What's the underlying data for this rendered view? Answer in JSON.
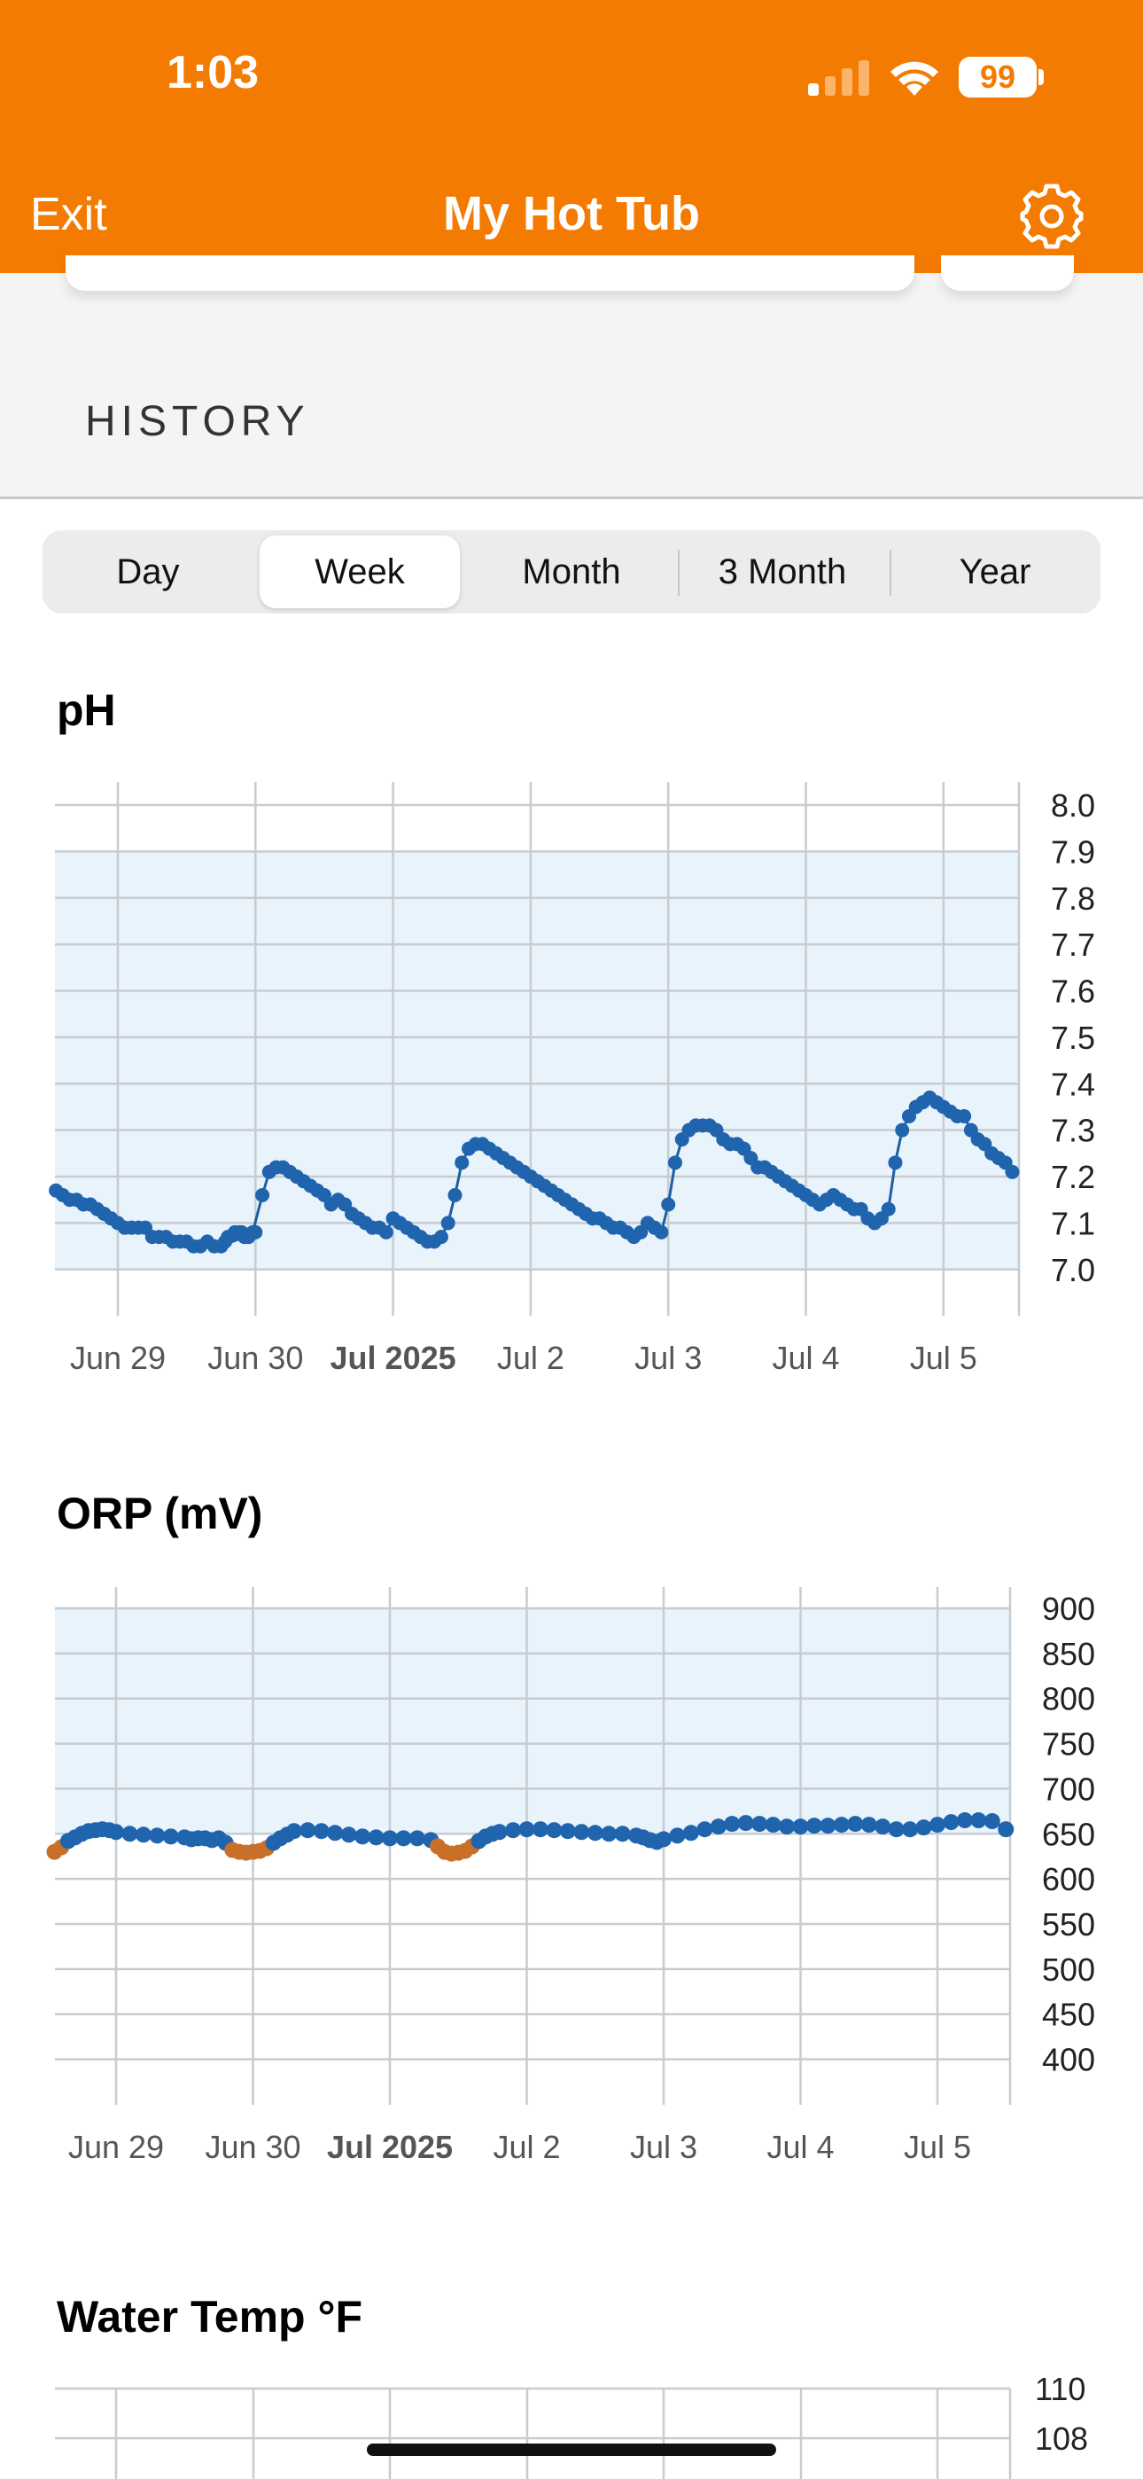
{
  "status_bar": {
    "time": "1:03",
    "battery": "99",
    "icons": [
      "cellular-signal-icon",
      "wifi-icon",
      "battery-icon"
    ]
  },
  "header": {
    "exit_label": "Exit",
    "title": "My Hot Tub",
    "settings_icon": "gear-icon",
    "background": "#f47b02"
  },
  "history": {
    "label": "HISTORY"
  },
  "range_tabs": {
    "items": [
      "Day",
      "Week",
      "Month",
      "3 Month",
      "Year"
    ],
    "selected": "Week"
  },
  "colors": {
    "line": "#1e5fa3",
    "dot": "#1f64ad",
    "low": "#c8702a",
    "band": "#e8f3fc",
    "grid": "#c7ccd1"
  },
  "chart_data": [
    {
      "type": "line",
      "title": "pH",
      "x_ticks": [
        "Jun 29",
        "Jun 30",
        "Jul 2025",
        "Jul 2",
        "Jul 3",
        "Jul 4",
        "Jul 5"
      ],
      "x_tick_bold": "Jul 2025",
      "y_ticks": [
        "8.0",
        "7.9",
        "7.8",
        "7.7",
        "7.6",
        "7.5",
        "7.4",
        "7.3",
        "7.2",
        "7.1",
        "7.0"
      ],
      "ylim": [
        6.95,
        8.0
      ],
      "xlim": [
        -0.45,
        6.55
      ],
      "target_range": [
        7.0,
        7.9
      ],
      "grid": true,
      "points": [
        [
          -0.45,
          7.17
        ],
        [
          -0.4,
          7.16
        ],
        [
          -0.35,
          7.15
        ],
        [
          -0.3,
          7.15
        ],
        [
          -0.25,
          7.14
        ],
        [
          -0.2,
          7.14
        ],
        [
          -0.15,
          7.13
        ],
        [
          -0.1,
          7.12
        ],
        [
          -0.05,
          7.11
        ],
        [
          0.0,
          7.1
        ],
        [
          0.05,
          7.09
        ],
        [
          0.1,
          7.09
        ],
        [
          0.15,
          7.09
        ],
        [
          0.2,
          7.09
        ],
        [
          0.25,
          7.07
        ],
        [
          0.3,
          7.07
        ],
        [
          0.35,
          7.07
        ],
        [
          0.4,
          7.06
        ],
        [
          0.45,
          7.06
        ],
        [
          0.5,
          7.06
        ],
        [
          0.55,
          7.05
        ],
        [
          0.6,
          7.05
        ],
        [
          0.65,
          7.06
        ],
        [
          0.7,
          7.05
        ],
        [
          0.75,
          7.05
        ],
        [
          0.8,
          7.07
        ],
        [
          0.85,
          7.08
        ],
        [
          0.9,
          7.08
        ],
        [
          0.95,
          7.07
        ],
        [
          1.0,
          7.08
        ],
        [
          0.75,
          7.05
        ],
        [
          0.78,
          7.06
        ],
        [
          0.88,
          7.08
        ],
        [
          0.92,
          7.07
        ],
        [
          0.98,
          7.08
        ],
        [
          1.05,
          7.16
        ],
        [
          1.1,
          7.21
        ],
        [
          1.15,
          7.22
        ],
        [
          1.2,
          7.22
        ],
        [
          1.25,
          7.21
        ],
        [
          1.3,
          7.2
        ],
        [
          1.35,
          7.19
        ],
        [
          1.4,
          7.18
        ],
        [
          1.45,
          7.17
        ],
        [
          1.5,
          7.16
        ],
        [
          1.55,
          7.14
        ],
        [
          1.6,
          7.15
        ],
        [
          1.65,
          7.14
        ],
        [
          1.7,
          7.12
        ],
        [
          1.75,
          7.11
        ],
        [
          1.8,
          7.1
        ],
        [
          1.85,
          7.09
        ],
        [
          1.9,
          7.09
        ],
        [
          1.95,
          7.08
        ],
        [
          2.0,
          7.11
        ],
        [
          2.05,
          7.1
        ],
        [
          2.1,
          7.09
        ],
        [
          2.15,
          7.08
        ],
        [
          2.2,
          7.07
        ],
        [
          2.25,
          7.06
        ],
        [
          2.3,
          7.06
        ],
        [
          2.35,
          7.07
        ],
        [
          2.4,
          7.1
        ],
        [
          2.45,
          7.16
        ],
        [
          2.5,
          7.23
        ],
        [
          2.55,
          7.26
        ],
        [
          2.6,
          7.27
        ],
        [
          2.65,
          7.27
        ],
        [
          2.7,
          7.26
        ],
        [
          2.75,
          7.25
        ],
        [
          2.8,
          7.24
        ],
        [
          2.85,
          7.23
        ],
        [
          2.9,
          7.22
        ],
        [
          2.95,
          7.21
        ],
        [
          3.0,
          7.2
        ],
        [
          3.05,
          7.19
        ],
        [
          3.1,
          7.18
        ],
        [
          3.15,
          7.17
        ],
        [
          3.2,
          7.16
        ],
        [
          3.25,
          7.15
        ],
        [
          3.3,
          7.14
        ],
        [
          3.35,
          7.13
        ],
        [
          3.4,
          7.12
        ],
        [
          3.45,
          7.11
        ],
        [
          3.5,
          7.11
        ],
        [
          3.55,
          7.1
        ],
        [
          3.6,
          7.09
        ],
        [
          3.65,
          7.09
        ],
        [
          3.7,
          7.08
        ],
        [
          3.75,
          7.07
        ],
        [
          3.8,
          7.08
        ],
        [
          3.85,
          7.1
        ],
        [
          3.9,
          7.09
        ],
        [
          3.95,
          7.08
        ],
        [
          4.0,
          7.14
        ],
        [
          4.05,
          7.23
        ],
        [
          4.1,
          7.28
        ],
        [
          4.15,
          7.3
        ],
        [
          4.2,
          7.31
        ],
        [
          4.25,
          7.31
        ],
        [
          4.3,
          7.31
        ],
        [
          4.35,
          7.3
        ],
        [
          4.4,
          7.28
        ],
        [
          4.45,
          7.27
        ],
        [
          4.5,
          7.27
        ],
        [
          4.55,
          7.26
        ],
        [
          4.6,
          7.24
        ],
        [
          4.65,
          7.22
        ],
        [
          4.7,
          7.22
        ],
        [
          4.75,
          7.21
        ],
        [
          4.8,
          7.2
        ],
        [
          4.85,
          7.19
        ],
        [
          4.9,
          7.18
        ],
        [
          4.95,
          7.17
        ],
        [
          5.0,
          7.16
        ],
        [
          5.05,
          7.15
        ],
        [
          5.1,
          7.14
        ],
        [
          5.15,
          7.15
        ],
        [
          5.2,
          7.16
        ],
        [
          5.25,
          7.15
        ],
        [
          5.3,
          7.14
        ],
        [
          5.35,
          7.13
        ],
        [
          5.4,
          7.13
        ],
        [
          5.45,
          7.11
        ],
        [
          5.5,
          7.1
        ],
        [
          5.55,
          7.11
        ],
        [
          5.6,
          7.13
        ],
        [
          5.65,
          7.23
        ],
        [
          5.7,
          7.3
        ],
        [
          5.75,
          7.33
        ],
        [
          5.8,
          7.35
        ],
        [
          5.85,
          7.36
        ],
        [
          5.9,
          7.37
        ],
        [
          5.95,
          7.36
        ],
        [
          6.0,
          7.35
        ],
        [
          6.05,
          7.34
        ],
        [
          6.1,
          7.33
        ],
        [
          6.15,
          7.33
        ],
        [
          6.2,
          7.3
        ],
        [
          6.25,
          7.28
        ],
        [
          6.3,
          7.27
        ],
        [
          6.35,
          7.25
        ],
        [
          6.4,
          7.24
        ],
        [
          6.45,
          7.23
        ],
        [
          6.5,
          7.21
        ]
      ],
      "points_tail": [
        [
          4.55,
          7.21
        ],
        [
          4.6,
          7.2
        ],
        [
          4.65,
          7.18
        ],
        [
          4.7,
          7.18
        ],
        [
          4.75,
          7.19
        ],
        [
          4.8,
          7.18
        ],
        [
          4.85,
          7.17
        ],
        [
          4.9,
          7.16
        ],
        [
          4.95,
          7.15
        ],
        [
          5.0,
          7.14
        ]
      ]
    },
    {
      "type": "line",
      "title": "ORP (mV)",
      "x_ticks": [
        "Jun 29",
        "Jun 30",
        "Jul 2025",
        "Jul 2",
        "Jul 3",
        "Jul 4",
        "Jul 5"
      ],
      "x_tick_bold": "Jul 2025",
      "y_ticks": [
        "900",
        "850",
        "800",
        "750",
        "700",
        "650",
        "600",
        "550",
        "500",
        "450",
        "400"
      ],
      "ylim": [
        375,
        900
      ],
      "xlim": [
        -0.45,
        6.5
      ],
      "target_range": [
        650,
        900
      ],
      "grid": true,
      "low_threshold": 640,
      "points": [
        [
          -0.45,
          630
        ],
        [
          -0.4,
          635
        ],
        [
          -0.35,
          642
        ],
        [
          -0.3,
          646
        ],
        [
          -0.25,
          650
        ],
        [
          -0.2,
          653
        ],
        [
          -0.15,
          654
        ],
        [
          -0.1,
          655
        ],
        [
          -0.05,
          654
        ],
        [
          0.0,
          652
        ],
        [
          0.1,
          650
        ],
        [
          0.2,
          649
        ],
        [
          0.3,
          648
        ],
        [
          0.4,
          647
        ],
        [
          0.5,
          646
        ],
        [
          0.55,
          644
        ],
        [
          0.6,
          645
        ],
        [
          0.65,
          645
        ],
        [
          0.7,
          643
        ],
        [
          0.75,
          645
        ],
        [
          0.8,
          640
        ],
        [
          0.85,
          632
        ],
        [
          0.9,
          630
        ],
        [
          0.95,
          629
        ],
        [
          1.0,
          630
        ],
        [
          1.05,
          631
        ],
        [
          1.1,
          634
        ],
        [
          1.15,
          640
        ],
        [
          1.2,
          645
        ],
        [
          1.25,
          649
        ],
        [
          1.3,
          653
        ],
        [
          1.4,
          654
        ],
        [
          1.5,
          653
        ],
        [
          1.6,
          651
        ],
        [
          1.7,
          649
        ],
        [
          1.8,
          647
        ],
        [
          1.9,
          646
        ],
        [
          2.0,
          645
        ],
        [
          2.1,
          645
        ],
        [
          2.2,
          645
        ],
        [
          2.3,
          643
        ],
        [
          2.35,
          636
        ],
        [
          2.4,
          630
        ],
        [
          2.45,
          628
        ],
        [
          2.5,
          629
        ],
        [
          2.55,
          631
        ],
        [
          2.6,
          636
        ],
        [
          2.65,
          642
        ],
        [
          2.7,
          647
        ],
        [
          2.75,
          650
        ],
        [
          2.8,
          652
        ],
        [
          2.9,
          654
        ],
        [
          3.0,
          655
        ],
        [
          3.1,
          655
        ],
        [
          3.2,
          654
        ],
        [
          3.3,
          653
        ],
        [
          3.4,
          652
        ],
        [
          3.5,
          651
        ],
        [
          3.6,
          650
        ],
        [
          3.7,
          650
        ],
        [
          3.8,
          648
        ],
        [
          3.85,
          646
        ],
        [
          3.9,
          643
        ],
        [
          3.95,
          641
        ],
        [
          4.0,
          644
        ],
        [
          4.1,
          648
        ],
        [
          4.2,
          651
        ],
        [
          4.3,
          655
        ],
        [
          4.4,
          658
        ],
        [
          4.5,
          661
        ],
        [
          4.6,
          662
        ],
        [
          4.7,
          661
        ],
        [
          4.8,
          660
        ],
        [
          4.9,
          658
        ],
        [
          5.0,
          658
        ],
        [
          5.1,
          659
        ],
        [
          5.2,
          659
        ],
        [
          5.3,
          660
        ],
        [
          5.4,
          661
        ],
        [
          5.5,
          660
        ],
        [
          5.6,
          658
        ],
        [
          5.7,
          655
        ],
        [
          5.8,
          655
        ],
        [
          5.9,
          657
        ],
        [
          6.0,
          660
        ],
        [
          6.1,
          663
        ],
        [
          6.2,
          665
        ],
        [
          6.3,
          665
        ],
        [
          6.4,
          664
        ],
        [
          6.5,
          655
        ]
      ]
    },
    {
      "type": "line",
      "title": "Water Temp °F",
      "x_ticks": [],
      "y_ticks": [
        "110",
        "108"
      ],
      "ylim": [
        106,
        110
      ],
      "grid": true,
      "points": []
    }
  ]
}
